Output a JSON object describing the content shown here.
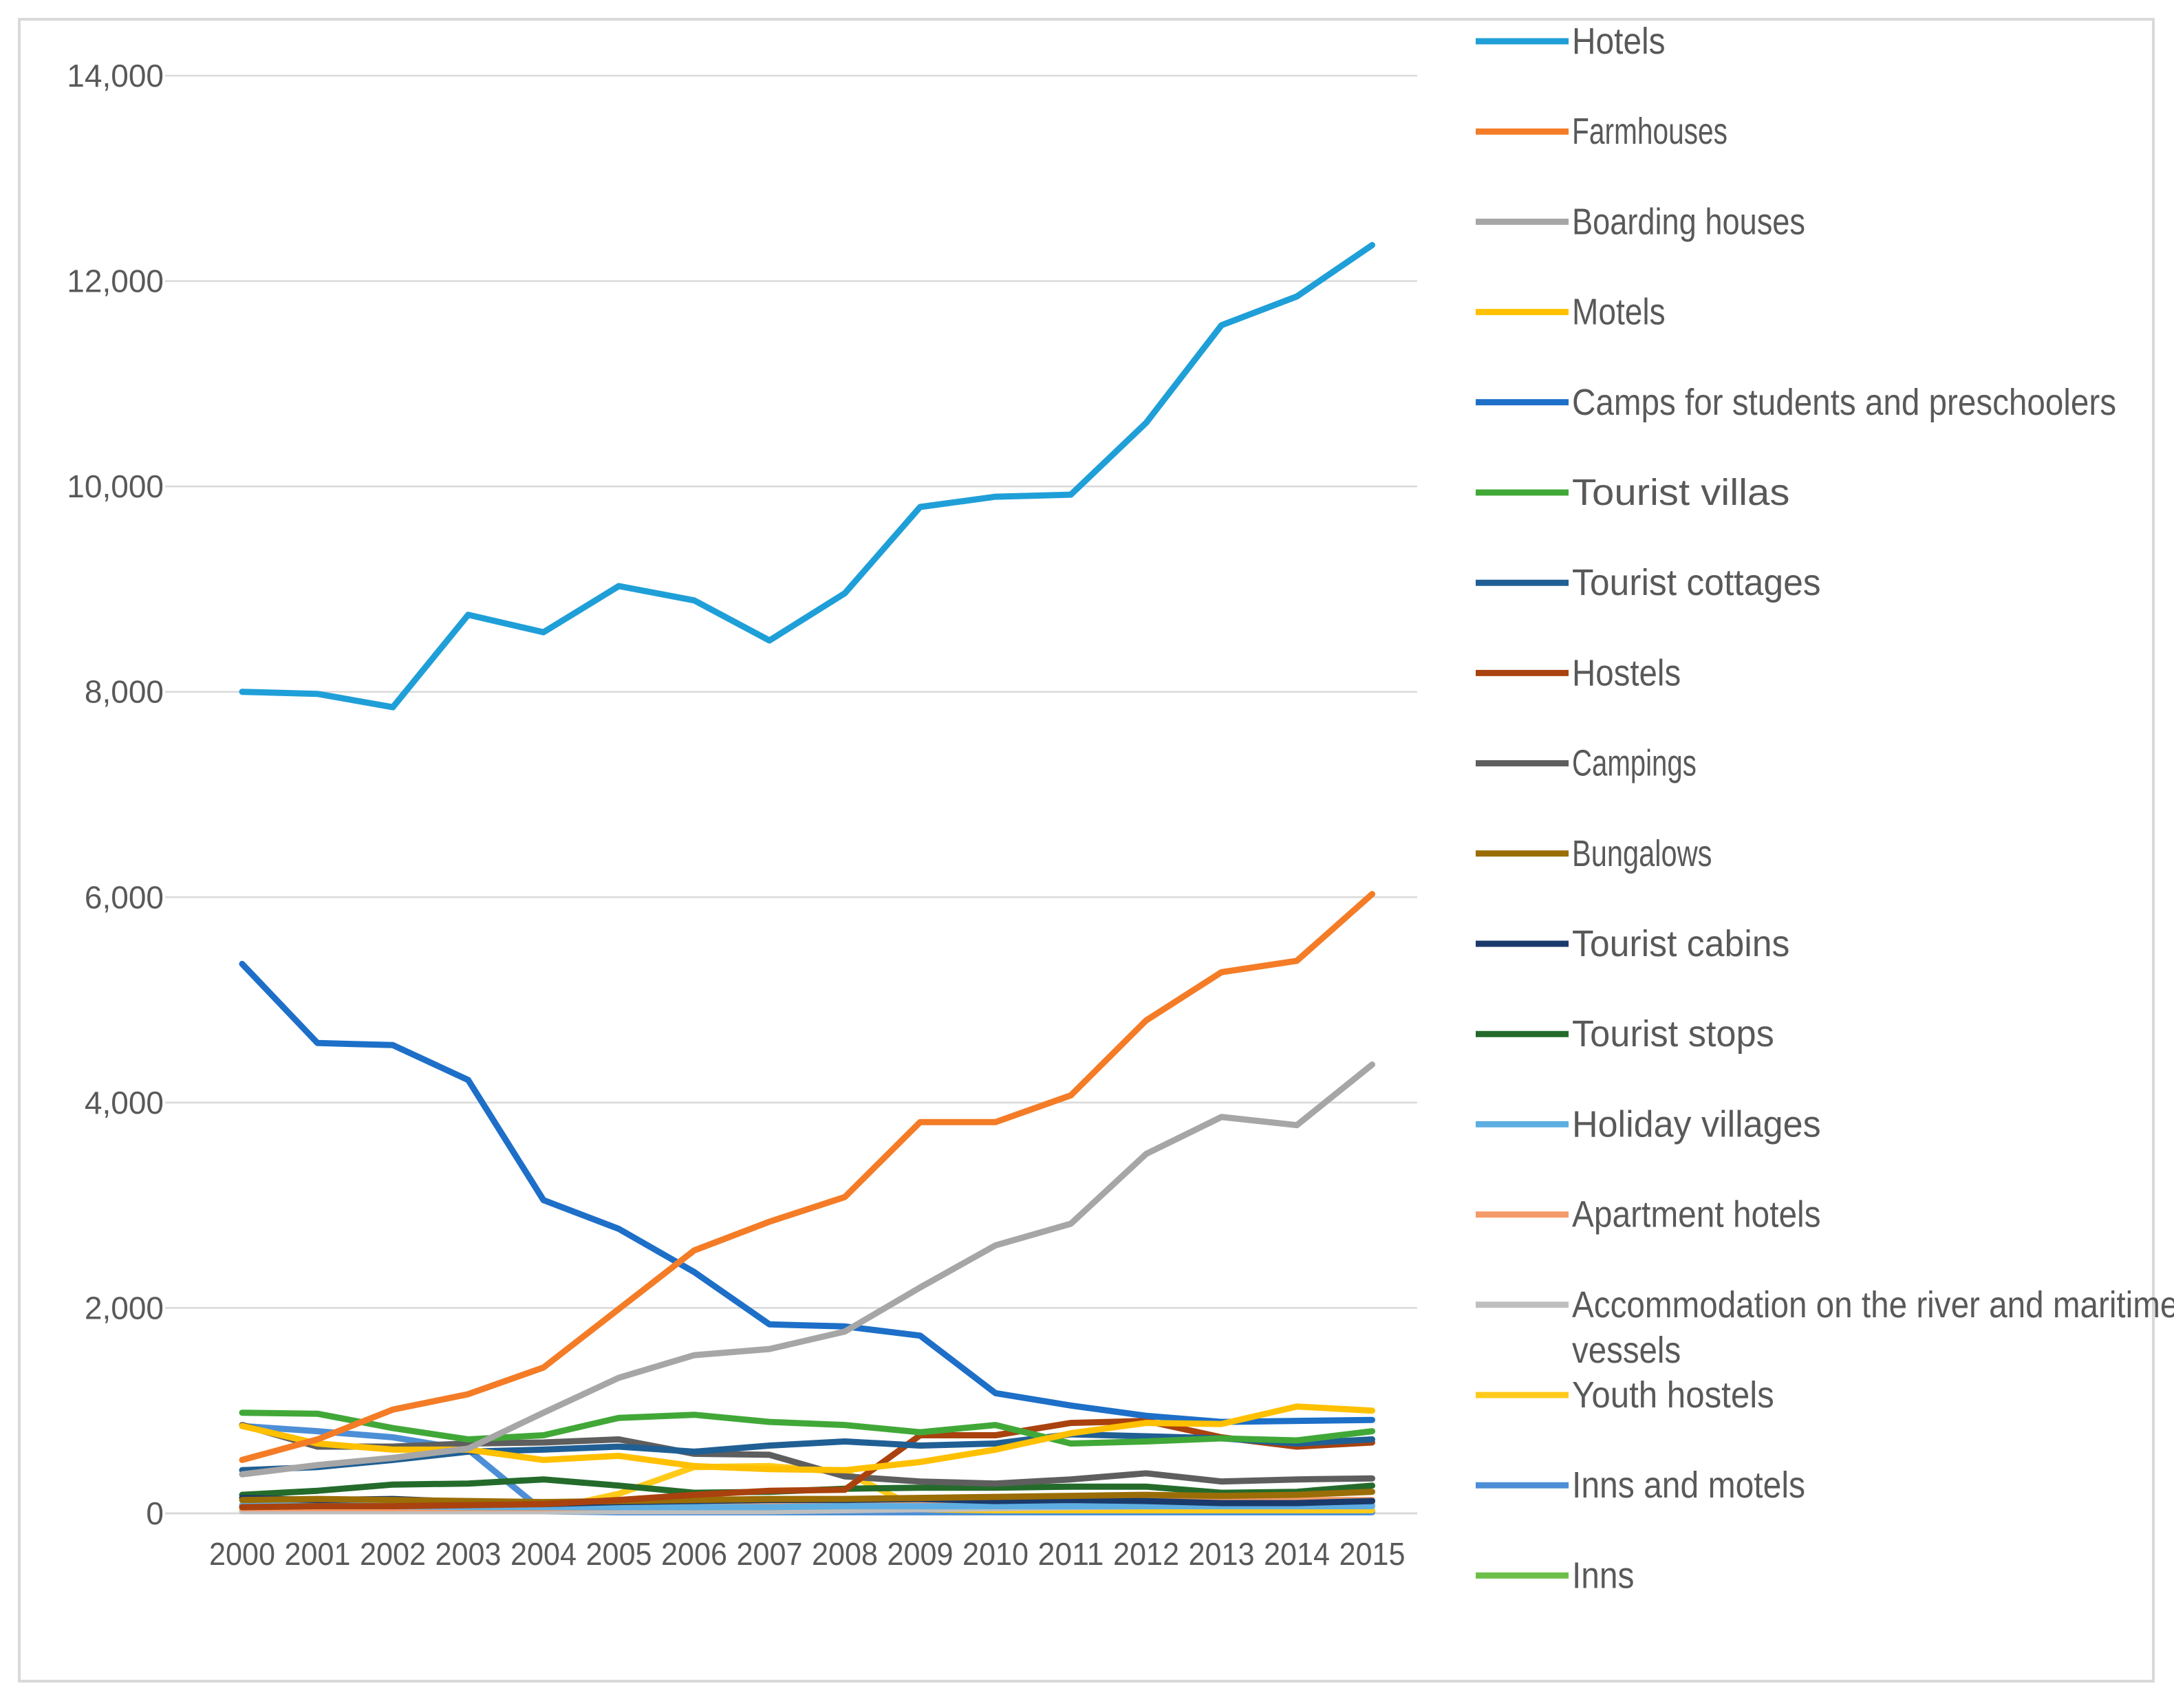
{
  "chart_data": {
    "type": "line",
    "title": "",
    "xlabel": "",
    "ylabel": "",
    "ylim": [
      0,
      14000
    ],
    "yticks": [
      0,
      2000,
      4000,
      6000,
      8000,
      10000,
      12000,
      14000
    ],
    "ytick_labels": [
      "0",
      "2,000",
      "4,000",
      "6,000",
      "8,000",
      "10,000",
      "12,000",
      "14,000"
    ],
    "grid": true,
    "legend_position": "right",
    "categories": [
      "2000",
      "2001",
      "2002",
      "2003",
      "2004",
      "2005",
      "2006",
      "2007",
      "2008",
      "2009",
      "2010",
      "2011",
      "2012",
      "2013",
      "2014",
      "2015"
    ],
    "series": [
      {
        "name": "Hotels",
        "color": "#1f9fd8",
        "values": [
          8000,
          7980,
          7850,
          8750,
          8580,
          9030,
          8890,
          8500,
          8960,
          9800,
          9900,
          9920,
          10620,
          11570,
          11850,
          12350
        ]
      },
      {
        "name": "Farmhouses",
        "color": "#f47c26",
        "values": [
          520,
          720,
          1010,
          1160,
          1420,
          1990,
          2560,
          2840,
          3080,
          3810,
          3810,
          4070,
          4800,
          5270,
          5380,
          6030
        ]
      },
      {
        "name": "Boarding houses",
        "color": "#a6a6a6",
        "values": [
          380,
          470,
          540,
          630,
          980,
          1320,
          1540,
          1600,
          1770,
          2200,
          2610,
          2820,
          3500,
          3860,
          3780,
          4370
        ]
      },
      {
        "name": "Motels",
        "color": "#ffc000",
        "values": [
          850,
          680,
          620,
          620,
          520,
          560,
          460,
          430,
          420,
          500,
          620,
          780,
          880,
          870,
          1040,
          1000
        ]
      },
      {
        "name": "Camps for students and preschoolers",
        "color": "#1d6fc8",
        "values": [
          5350,
          4580,
          4560,
          4220,
          3050,
          2770,
          2350,
          1840,
          1820,
          1730,
          1170,
          1050,
          950,
          890,
          900,
          910
        ]
      },
      {
        "name": "Tourist villas",
        "color": "#41a838",
        "values": [
          980,
          970,
          830,
          720,
          760,
          930,
          960,
          890,
          860,
          790,
          860,
          680,
          700,
          730,
          710,
          800
        ]
      },
      {
        "name": "Tourist cottages",
        "color": "#1f5f94",
        "values": [
          420,
          450,
          520,
          600,
          620,
          650,
          600,
          660,
          700,
          660,
          680,
          770,
          750,
          730,
          680,
          720
        ]
      },
      {
        "name": "Hostels",
        "color": "#a9420e",
        "values": [
          60,
          70,
          70,
          80,
          90,
          130,
          180,
          220,
          230,
          760,
          760,
          880,
          900,
          740,
          650,
          690
        ]
      },
      {
        "name": "Campings",
        "color": "#5e5e5e",
        "values": [
          860,
          650,
          650,
          680,
          690,
          720,
          580,
          570,
          360,
          310,
          290,
          330,
          390,
          310,
          330,
          340
        ]
      },
      {
        "name": "Bungalows",
        "color": "#9a6d07",
        "values": [
          130,
          140,
          130,
          120,
          110,
          120,
          130,
          140,
          140,
          150,
          160,
          170,
          180,
          170,
          180,
          210
        ]
      },
      {
        "name": "Tourist cabins",
        "color": "#1a3a6c",
        "values": [
          150,
          130,
          140,
          110,
          90,
          110,
          120,
          130,
          130,
          140,
          120,
          130,
          120,
          100,
          100,
          120
        ]
      },
      {
        "name": "Tourist stops",
        "color": "#246b2b",
        "values": [
          180,
          220,
          280,
          290,
          330,
          270,
          200,
          210,
          240,
          250,
          250,
          260,
          260,
          200,
          210,
          270
        ]
      },
      {
        "name": "Holiday villages",
        "color": "#5eaee2",
        "values": [
          80,
          80,
          70,
          60,
          60,
          60,
          60,
          60,
          70,
          70,
          70,
          70,
          70,
          70,
          70,
          70
        ]
      },
      {
        "name": "Apartment hotels",
        "color": "#f59b6b",
        "values": [
          50,
          50,
          50,
          50,
          50,
          60,
          60,
          70,
          70,
          80,
          100,
          110,
          120,
          120,
          130,
          130
        ]
      },
      {
        "name": "Accommodation on the river and maritime vessels",
        "color": "#bfbfbf",
        "values": [
          20,
          20,
          20,
          20,
          20,
          20,
          20,
          20,
          30,
          40,
          50,
          60,
          70,
          80,
          80,
          90
        ]
      },
      {
        "name": "Youth hostels",
        "color": "#ffca1a",
        "values": [
          30,
          30,
          20,
          20,
          30,
          190,
          450,
          460,
          400,
          40,
          30,
          30,
          30,
          30,
          30,
          30
        ]
      },
      {
        "name": "Inns and motels",
        "color": "#4d8fd6",
        "values": [
          850,
          800,
          740,
          620,
          20,
          10,
          10,
          10,
          10,
          10,
          10,
          10,
          10,
          10,
          10,
          10
        ]
      },
      {
        "name": "Inns",
        "color": "#6cc04a",
        "values": [
          30,
          30,
          30,
          20,
          20,
          20,
          20,
          20,
          20,
          20,
          20,
          20,
          20,
          20,
          20,
          20
        ]
      }
    ]
  }
}
